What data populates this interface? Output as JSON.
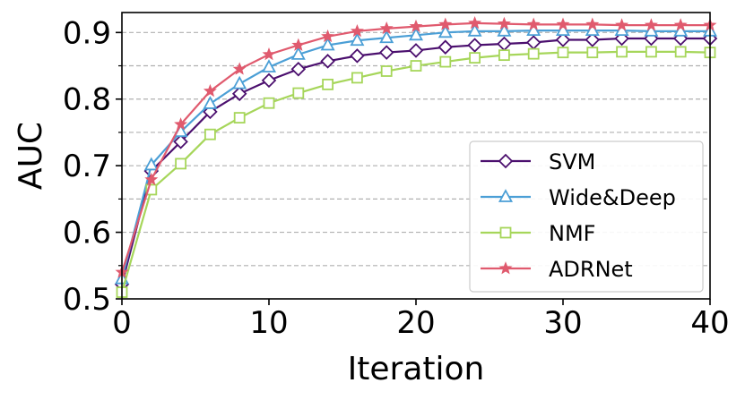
{
  "chart_data": {
    "type": "line",
    "xlabel": "Iteration",
    "ylabel": "AUC",
    "xlim": [
      0,
      40
    ],
    "ylim": [
      0.5,
      0.93
    ],
    "xticks": [
      0,
      10,
      20,
      30,
      40
    ],
    "xtick_labels": [
      "0",
      "10",
      "20",
      "30",
      "40"
    ],
    "yticks": [
      0.5,
      0.6,
      0.7,
      0.8,
      0.9
    ],
    "ytick_labels": [
      "0.5",
      "0.6",
      "0.7",
      "0.8",
      "0.9"
    ],
    "grid": "horizontal dashed at 0.55, 0.60, 0.65, 0.70, 0.75, 0.80, 0.85, 0.90",
    "grid_values": [
      0.55,
      0.6,
      0.65,
      0.7,
      0.75,
      0.8,
      0.85,
      0.9
    ],
    "legend_position": "lower-right",
    "x": [
      0,
      2,
      4,
      6,
      8,
      10,
      12,
      14,
      16,
      18,
      20,
      22,
      24,
      26,
      28,
      30,
      32,
      34,
      36,
      38,
      40
    ],
    "series": [
      {
        "name": "SVM",
        "color": "#4b0f6e",
        "marker": "diamond",
        "values": [
          0.522,
          0.692,
          0.736,
          0.781,
          0.808,
          0.828,
          0.845,
          0.857,
          0.865,
          0.87,
          0.873,
          0.878,
          0.881,
          0.883,
          0.885,
          0.889,
          0.889,
          0.891,
          0.891,
          0.891,
          0.891
        ]
      },
      {
        "name": "Wide&Deep",
        "color": "#4b9fd6",
        "marker": "triangle",
        "values": [
          0.53,
          0.701,
          0.751,
          0.793,
          0.823,
          0.848,
          0.867,
          0.881,
          0.888,
          0.892,
          0.896,
          0.9,
          0.902,
          0.902,
          0.903,
          0.903,
          0.903,
          0.903,
          0.902,
          0.902,
          0.902
        ]
      },
      {
        "name": "NMF",
        "color": "#a6d65a",
        "marker": "square",
        "values": [
          0.51,
          0.664,
          0.703,
          0.747,
          0.772,
          0.794,
          0.809,
          0.822,
          0.832,
          0.842,
          0.85,
          0.856,
          0.862,
          0.866,
          0.868,
          0.87,
          0.87,
          0.871,
          0.871,
          0.871,
          0.87
        ]
      },
      {
        "name": "ADRNet",
        "color": "#e05a6e",
        "marker": "star",
        "values": [
          0.54,
          0.679,
          0.762,
          0.812,
          0.845,
          0.867,
          0.881,
          0.894,
          0.902,
          0.906,
          0.909,
          0.912,
          0.914,
          0.913,
          0.912,
          0.912,
          0.912,
          0.911,
          0.911,
          0.911,
          0.911
        ]
      }
    ]
  }
}
